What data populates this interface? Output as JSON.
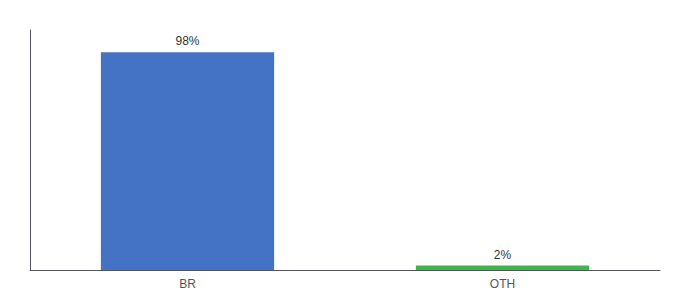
{
  "chart_data": {
    "type": "bar",
    "categories": [
      "BR",
      "OTH"
    ],
    "values": [
      98,
      2
    ],
    "value_labels": [
      "98%",
      "2%"
    ],
    "data_labels": true,
    "colors": [
      "#4472c4",
      "#3cb54a"
    ],
    "ylim": [
      0,
      108
    ],
    "tick_labels": "x",
    "grid": false
  }
}
